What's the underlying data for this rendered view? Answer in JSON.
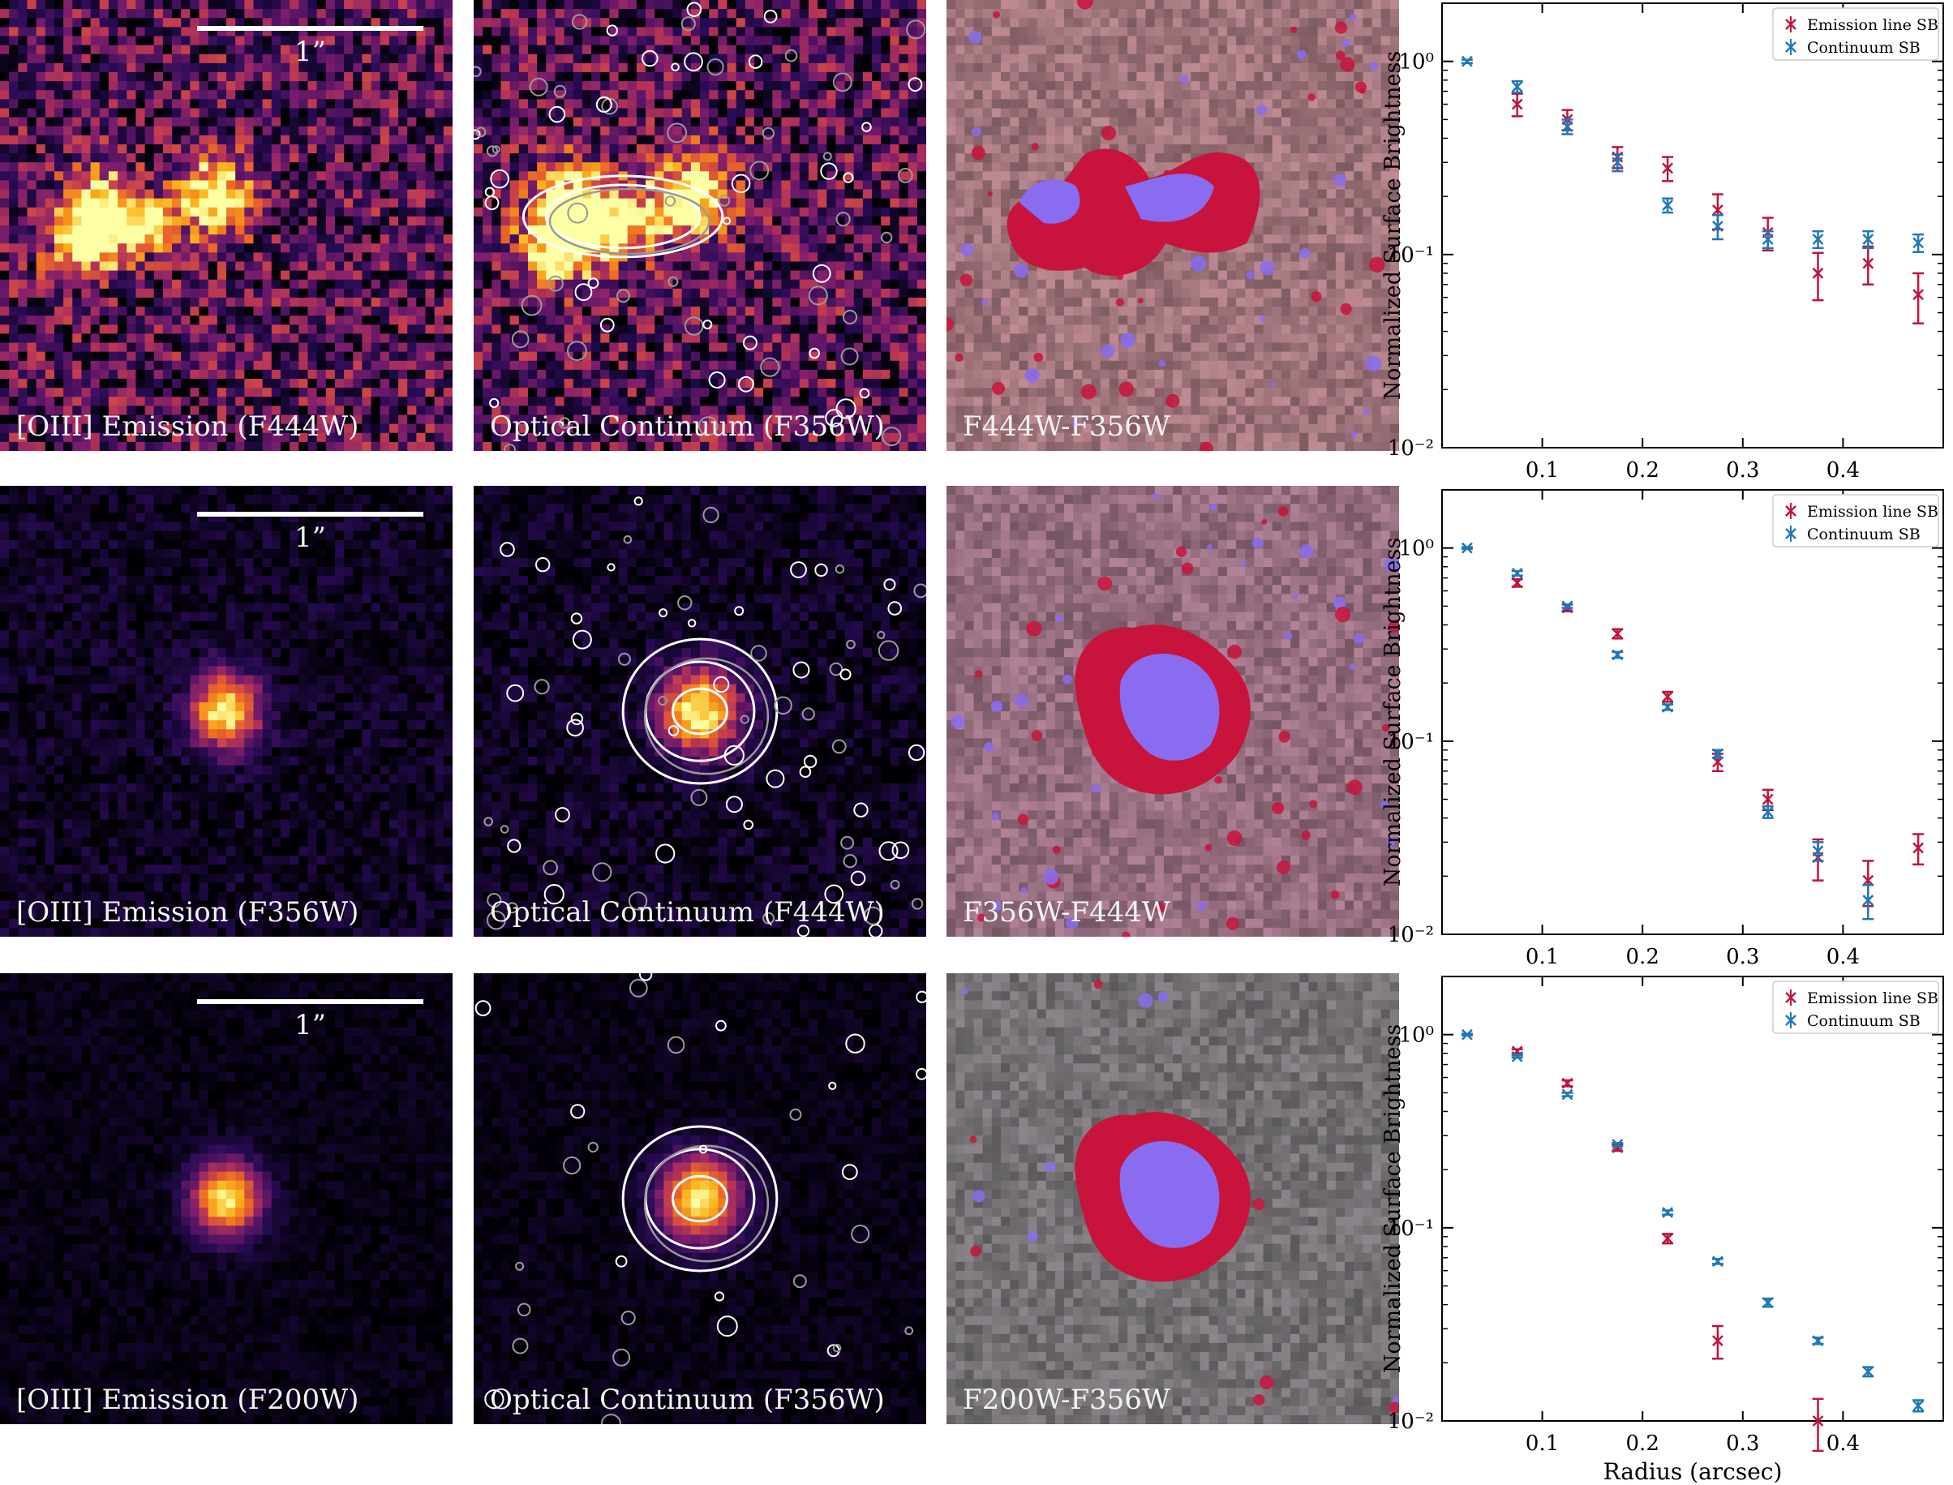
{
  "rows": [
    {
      "emission_label": "[OIII] Emission (F444W)",
      "continuum_label": "Optical Continuum (F356W)",
      "diff_label": "F444W-F356W",
      "scale_label": "1”",
      "morphology": "clumpy",
      "noise": "high"
    },
    {
      "emission_label": "[OIII] Emission (F356W)",
      "continuum_label": "Optical Continuum (F444W)",
      "diff_label": "F356W-F444W",
      "scale_label": "1”",
      "morphology": "compact",
      "noise": "medium"
    },
    {
      "emission_label": "[OIII] Emission (F200W)",
      "continuum_label": "Optical Continuum (F356W)",
      "diff_label": "F200W-F356W",
      "scale_label": "1”",
      "morphology": "compact",
      "noise": "low"
    }
  ],
  "colors": {
    "emission": "#c0143c",
    "continuum": "#1f78b4",
    "diff_excess_emission": "#c8143c",
    "diff_excess_continuum": "#8a6cf0"
  },
  "chart_data": [
    {
      "type": "scatter",
      "xlabel": "",
      "ylabel": "Normalized Surface Brightness",
      "y_scale": "log",
      "ylim": [
        0.01,
        2
      ],
      "xlim": [
        0,
        0.5
      ],
      "xticks": [
        "0.1",
        "0.2",
        "0.3",
        "0.4"
      ],
      "yticks": [
        "10⁻²",
        "10⁻¹",
        "10⁰"
      ],
      "legend_position": "top-right",
      "series": [
        {
          "name": "Emission line SB",
          "color": "#c0143c",
          "x": [
            0.075,
            0.125,
            0.175,
            0.225,
            0.275,
            0.325,
            0.375,
            0.425,
            0.475
          ],
          "y": [
            0.6,
            0.5,
            0.32,
            0.28,
            0.17,
            0.13,
            0.08,
            0.09,
            0.062
          ],
          "err": [
            0.08,
            0.06,
            0.04,
            0.04,
            0.035,
            0.025,
            0.022,
            0.02,
            0.018
          ]
        },
        {
          "name": "Continuum SB",
          "color": "#1f78b4",
          "x": [
            0.025,
            0.075,
            0.125,
            0.175,
            0.225,
            0.275,
            0.325,
            0.375,
            0.425,
            0.475
          ],
          "y": [
            1.0,
            0.74,
            0.46,
            0.3,
            0.18,
            0.14,
            0.12,
            0.12,
            0.12,
            0.115
          ],
          "err": [
            0.02,
            0.05,
            0.04,
            0.03,
            0.015,
            0.02,
            0.012,
            0.012,
            0.012,
            0.012
          ]
        }
      ]
    },
    {
      "type": "scatter",
      "xlabel": "",
      "ylabel": "Normalized Surface Brightness",
      "y_scale": "log",
      "ylim": [
        0.01,
        2
      ],
      "xlim": [
        0,
        0.5
      ],
      "xticks": [
        "0.1",
        "0.2",
        "0.3",
        "0.4"
      ],
      "yticks": [
        "10⁻²",
        "10⁻¹",
        "10⁰"
      ],
      "legend_position": "top-right",
      "series": [
        {
          "name": "Emission line SB",
          "color": "#c0143c",
          "x": [
            0.075,
            0.125,
            0.175,
            0.225,
            0.275,
            0.325,
            0.375,
            0.425,
            0.475
          ],
          "y": [
            0.66,
            0.49,
            0.36,
            0.17,
            0.078,
            0.05,
            0.025,
            0.019,
            0.028
          ],
          "err": [
            0.03,
            0.02,
            0.02,
            0.01,
            0.008,
            0.006,
            0.006,
            0.005,
            0.005
          ]
        },
        {
          "name": "Continuum SB",
          "color": "#1f78b4",
          "x": [
            0.025,
            0.075,
            0.125,
            0.175,
            0.225,
            0.275,
            0.325,
            0.375,
            0.425
          ],
          "y": [
            1.0,
            0.74,
            0.5,
            0.28,
            0.15,
            0.086,
            0.043,
            0.027,
            0.015
          ],
          "err": [
            0.01,
            0.02,
            0.01,
            0.01,
            0.005,
            0.004,
            0.003,
            0.003,
            0.003
          ]
        }
      ]
    },
    {
      "type": "scatter",
      "xlabel": "Radius (arcsec)",
      "ylabel": "Normalized Surface Brightness",
      "y_scale": "log",
      "ylim": [
        0.01,
        2
      ],
      "xlim": [
        0,
        0.5
      ],
      "xticks": [
        "0.1",
        "0.2",
        "0.3",
        "0.4"
      ],
      "yticks": [
        "10⁻²",
        "10⁻¹",
        "10⁰"
      ],
      "legend_position": "top-right",
      "series": [
        {
          "name": "Emission line SB",
          "color": "#c0143c",
          "x": [
            0.075,
            0.125,
            0.175,
            0.225,
            0.275,
            0.375
          ],
          "y": [
            0.82,
            0.56,
            0.26,
            0.088,
            0.026,
            0.01
          ],
          "err": [
            0.02,
            0.02,
            0.01,
            0.005,
            0.005,
            0.003
          ]
        },
        {
          "name": "Continuum SB",
          "color": "#1f78b4",
          "x": [
            0.025,
            0.075,
            0.125,
            0.175,
            0.225,
            0.275,
            0.325,
            0.375,
            0.425,
            0.475
          ],
          "y": [
            1.0,
            0.77,
            0.49,
            0.27,
            0.12,
            0.067,
            0.041,
            0.026,
            0.018,
            0.012
          ],
          "err": [
            0.01,
            0.01,
            0.01,
            0.005,
            0.003,
            0.002,
            0.002,
            0.001,
            0.001,
            0.0008
          ]
        }
      ]
    }
  ]
}
